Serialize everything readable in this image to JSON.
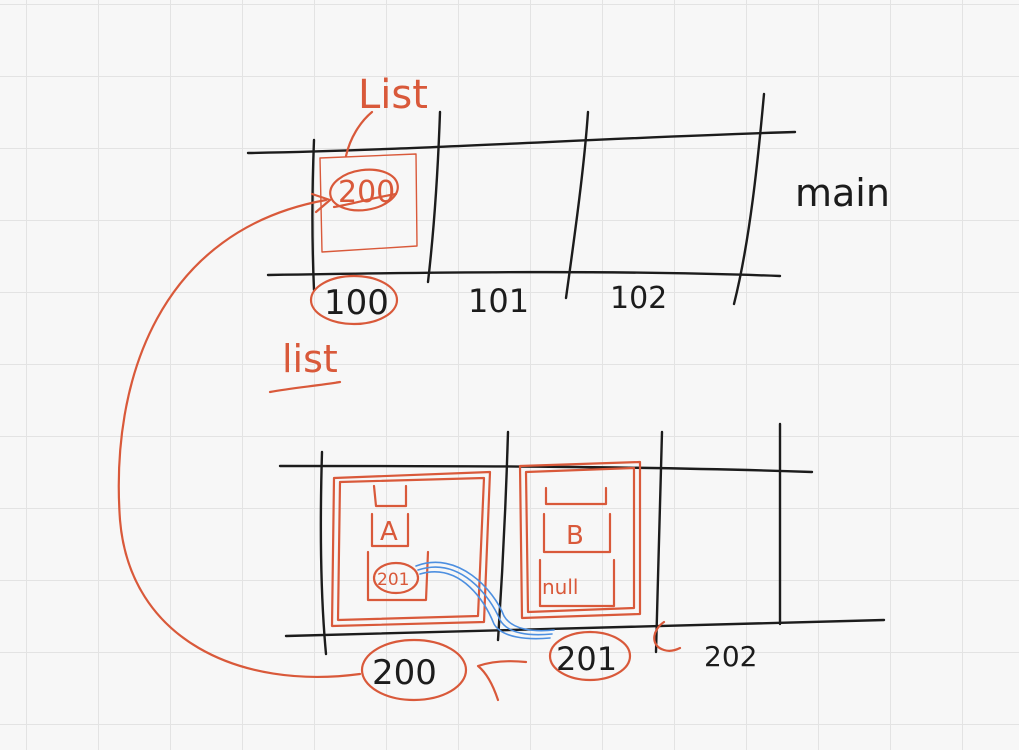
{
  "colors": {
    "ink": "#1c1c1c",
    "accent": "#d9593a",
    "reference": "#4d8fe0",
    "grid": "#e3e3e3"
  },
  "top_memory": {
    "label": "main",
    "annotation": "List",
    "variable": "list",
    "cell_value": "200",
    "addresses": [
      "100",
      "101",
      "102"
    ]
  },
  "bottom_memory": {
    "addresses": [
      "200",
      "201",
      "202"
    ],
    "node_a": {
      "data": "A",
      "next": "201"
    },
    "node_b": {
      "data": "B",
      "next": "null"
    }
  }
}
